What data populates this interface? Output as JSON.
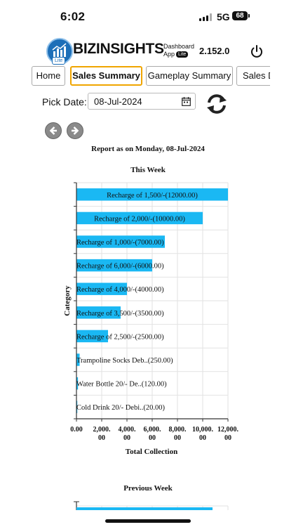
{
  "status": {
    "time": "6:02",
    "network": "5G",
    "battery": "68"
  },
  "app": {
    "brand": "BIZINSIGHTS",
    "subtitle_line1": "Dashboard",
    "subtitle_line2": "App",
    "lite_badge": "Lite",
    "logo_badge": "Lite",
    "version": "2.152.0",
    "icons": [
      "power-icon"
    ]
  },
  "tabs": [
    {
      "label": "Home"
    },
    {
      "label": "Sales Summary",
      "active": true
    },
    {
      "label": "Gameplay Summary"
    },
    {
      "label": "Sales D"
    }
  ],
  "pick": {
    "label": "Pick Date:",
    "value": "08-Jul-2024",
    "icons": [
      "calendar-icon",
      "refresh-icon"
    ]
  },
  "nav": {
    "icons": [
      "previous-icon",
      "next-icon"
    ]
  },
  "report": {
    "title": "Report as on Monday, 08-Jul-2024"
  },
  "colors": {
    "bar": "#1ab8f3",
    "accent": "#f0a500",
    "brand": "#1d6fb8"
  },
  "chart_data": [
    {
      "type": "bar",
      "orientation": "horizontal",
      "title": "This Week",
      "xlabel": "Total Collection",
      "ylabel": "Category",
      "xlim": [
        0,
        12000
      ],
      "x_ticks": [
        "0.00",
        "2,000.00",
        "4,000.00",
        "6,000.00",
        "8,000.00",
        "10,000.00",
        "12,000.00"
      ],
      "grid": true,
      "categories": [
        "Recharge of 1,500/-",
        "Recharge of 2,000/-",
        "Recharge of 1,000/-",
        "Recharge of 6,000/-",
        "Recharge of 4,000/-",
        "Recharge of 3,500/-",
        "Recharge of 2,500/-",
        "Trampoline Socks Deb..",
        "Water Bottle 20/- De..",
        "Cold Drink 20/- Debi.."
      ],
      "values": [
        12000,
        10000,
        7000,
        6000,
        4000,
        3500,
        2500,
        250,
        120,
        20
      ],
      "data_labels": [
        "Recharge of 1,500/-(12000.00)",
        "Recharge of 2,000/-(10000.00)",
        "Recharge of 1,000/-(7000.00)",
        "Recharge of 6,000/-(6000.00)",
        "Recharge of 4,000/-(4000.00)",
        "Recharge of 3,500/-(3500.00)",
        "Recharge of 2,500/-(2500.00)",
        "Trampoline Socks Deb..(250.00)",
        "Water Bottle 20/- De..(120.00)",
        "Cold Drink 20/- Debi..(20.00)"
      ]
    },
    {
      "type": "bar",
      "orientation": "horizontal",
      "title": "Previous Week"
    }
  ]
}
